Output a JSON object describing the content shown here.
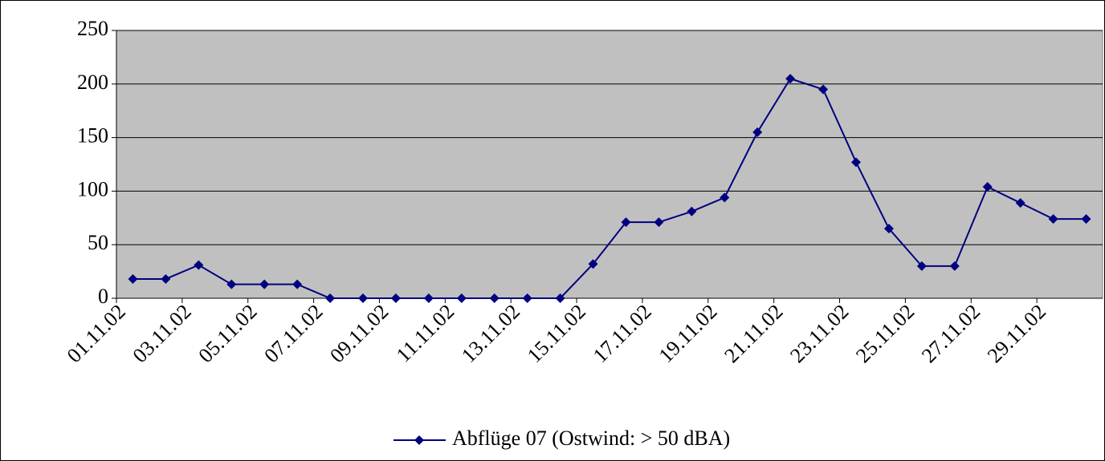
{
  "chart_data": {
    "type": "line",
    "categories": [
      "01.11.02",
      null,
      "03.11.02",
      null,
      "05.11.02",
      null,
      "07.11.02",
      null,
      "09.11.02",
      null,
      "11.11.02",
      null,
      "13.11.02",
      null,
      "15.11.02",
      null,
      "17.11.02",
      null,
      "19.11.02",
      null,
      "21.11.02",
      null,
      "23.11.02",
      null,
      "25.11.02",
      null,
      "27.11.02",
      null,
      "29.11.02",
      null
    ],
    "series": [
      {
        "name": "Abflüge 07 (Ostwind: > 50 dBA)",
        "color": "#000080",
        "values": [
          18,
          18,
          31,
          13,
          13,
          13,
          0,
          0,
          0,
          0,
          0,
          0,
          0,
          0,
          32,
          71,
          71,
          81,
          94,
          155,
          205,
          195,
          127,
          65,
          30,
          30,
          104,
          89,
          74,
          74
        ]
      }
    ],
    "ylim": [
      0,
      250
    ],
    "yticks": [
      0,
      50,
      100,
      150,
      200,
      250
    ],
    "grid": true,
    "legend": "bottom"
  }
}
